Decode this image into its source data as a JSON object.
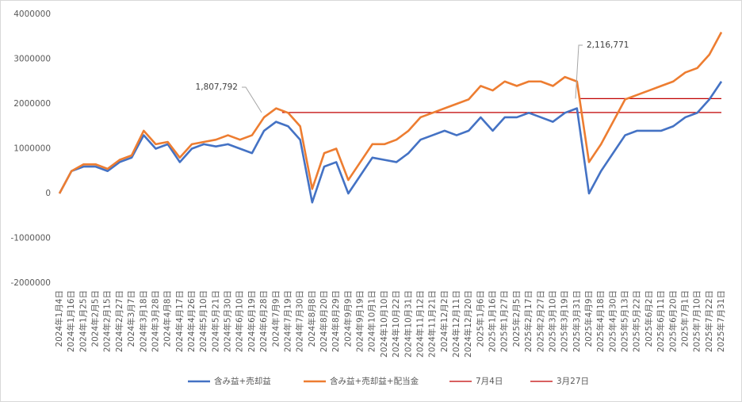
{
  "chart_data": {
    "type": "line",
    "categories": [
      "2024年1月4日",
      "2024年1月16日",
      "2024年1月25日",
      "2024年2月5日",
      "2024年2月15日",
      "2024年2月27日",
      "2024年3月7日",
      "2024年3月18日",
      "2024年3月28日",
      "2024年4月8日",
      "2024年4月17日",
      "2024年4月26日",
      "2024年5月10日",
      "2024年5月21日",
      "2024年5月30日",
      "2024年6月10日",
      "2024年6月19日",
      "2024年6月28日",
      "2024年7月9日",
      "2024年7月19日",
      "2024年7月30日",
      "2024年8月8日",
      "2024年8月20日",
      "2024年8月29日",
      "2024年9月9日",
      "2024年9月19日",
      "2024年10月1日",
      "2024年10月10日",
      "2024年10月22日",
      "2024年10月31日",
      "2024年11月12日",
      "2024年11月21日",
      "2024年12月2日",
      "2024年12月11日",
      "2024年12月20日",
      "2025年1月6日",
      "2025年1月16日",
      "2025年1月27日",
      "2025年2月5日",
      "2025年2月17日",
      "2025年2月27日",
      "2025年3月10日",
      "2025年3月19日",
      "2025年3月31日",
      "2025年4月9日",
      "2025年4月18日",
      "2025年4月30日",
      "2025年5月13日",
      "2025年5月22日",
      "2025年6月2日",
      "2025年6月11日",
      "2025年6月20日",
      "2025年7月1日",
      "2025年7月10日",
      "2025年7月22日",
      "2025年7月31日"
    ],
    "series": [
      {
        "name": "含み益+売却益",
        "color": "#4472c4",
        "values": [
          0,
          500000,
          600000,
          600000,
          500000,
          700000,
          800000,
          1300000,
          1000000,
          1100000,
          700000,
          1000000,
          1100000,
          1050000,
          1100000,
          1000000,
          900000,
          1400000,
          1600000,
          1500000,
          1200000,
          -200000,
          600000,
          700000,
          0,
          400000,
          800000,
          750000,
          700000,
          900000,
          1200000,
          1300000,
          1400000,
          1300000,
          1400000,
          1700000,
          1400000,
          1700000,
          1700000,
          1800000,
          1700000,
          1600000,
          1800000,
          1900000,
          0,
          500000,
          900000,
          1300000,
          1400000,
          1400000,
          1400000,
          1500000,
          1700000,
          1800000,
          2100000,
          2500000
        ]
      },
      {
        "name": "含み益+売却益+配当金",
        "color": "#ed7d31",
        "values": [
          0,
          500000,
          650000,
          650000,
          550000,
          750000,
          850000,
          1400000,
          1100000,
          1150000,
          800000,
          1100000,
          1150000,
          1200000,
          1300000,
          1200000,
          1300000,
          1700000,
          1900000,
          1800000,
          1500000,
          100000,
          900000,
          1000000,
          300000,
          700000,
          1100000,
          1100000,
          1200000,
          1400000,
          1700000,
          1800000,
          1900000,
          2000000,
          2100000,
          2400000,
          2300000,
          2500000,
          2400000,
          2500000,
          2500000,
          2400000,
          2600000,
          2500000,
          700000,
          1100000,
          1600000,
          2100000,
          2200000,
          2300000,
          2400000,
          2500000,
          2700000,
          2800000,
          3100000,
          3600000
        ]
      }
    ],
    "reference_lines": [
      {
        "name": "7月4日",
        "color": "#c00000",
        "value": 1807792,
        "value_label": "1,807,792"
      },
      {
        "name": "3月27日",
        "color": "#c00000",
        "value": 2116771,
        "value_label": "2,116,771"
      }
    ],
    "ylim": [
      -2000000,
      4000000
    ],
    "yticks": [
      -2000000,
      -1000000,
      0,
      1000000,
      2000000,
      3000000,
      4000000
    ],
    "grid": false,
    "legend": "bottom"
  }
}
